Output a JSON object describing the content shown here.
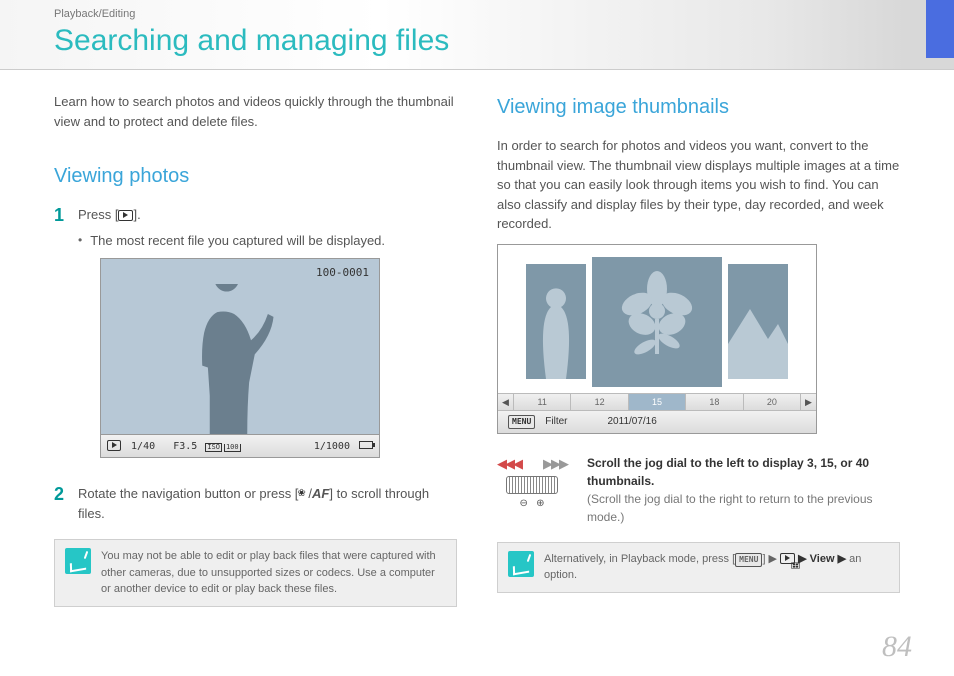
{
  "breadcrumb": "Playback/Editing",
  "page_title": "Searching and managing files",
  "page_number": "84",
  "left": {
    "intro": "Learn how to search photos and videos quickly through the thumbnail view and to protect and delete files.",
    "section_title": "Viewing photos",
    "step1_pre": "Press [",
    "step1_post": "].",
    "step1_bullet": "The most recent file you captured will be displayed.",
    "shot_label": "100-0001",
    "shot_bar_left_shutter": "1/40",
    "shot_bar_left_f": "F3.5",
    "shot_bar_left_iso": "ISO",
    "shot_bar_left_iso_val": "100",
    "shot_bar_right": "1/1000",
    "step2_pre": "Rotate the navigation button or press [",
    "step2_sep": "/",
    "step2_post": "] to scroll through files.",
    "note": "You may not be able to edit or play back files that were captured with other cameras, due to unsupported sizes or codecs. Use a computer or another device to edit or play back these files."
  },
  "right": {
    "section_title": "Viewing image thumbnails",
    "intro": "In order to search for photos and videos you want, convert to the thumbnail view. The thumbnail view displays multiple images at a time so that you can easily look through items you wish to find. You can also classify and display files by their type, day recorded, and week recorded.",
    "strip": [
      "11",
      "12",
      "15",
      "18",
      "20"
    ],
    "strip_selected_index": 2,
    "menu_label": "MENU",
    "filter_label": "Filter",
    "date_label": "2011/07/16",
    "jog_title": "Scroll the jog dial to the left to display 3, 15, or 40 thumbnails.",
    "jog_sub": "(Scroll the jog dial to the right to return to the previous mode.)",
    "note_pre": "Alternatively, in Playback mode, press [",
    "note_menu": "MENU",
    "note_mid": "] ▶ ",
    "note_view": " ▶ View ▶ ",
    "note_end": "an option."
  },
  "colors": {
    "accent_teal": "#2bbbbf",
    "accent_blue": "#3aa5d9",
    "stripe_blue": "#4a6de0",
    "thumb_fill": "#7f98a8",
    "shot_bg": "#b7c8d6"
  }
}
